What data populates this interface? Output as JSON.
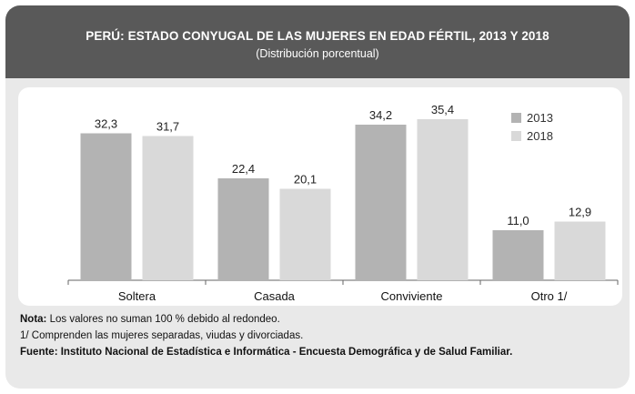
{
  "header": {
    "title": "PERÚ: ESTADO CONYUGAL DE LAS MUJERES EN EDAD FÉRTIL, 2013 Y 2018",
    "subtitle": "(Distribución porcentual)"
  },
  "notes": {
    "nota_label": "Nota:",
    "nota_text": " Los valores no suman 100 % debido al redondeo.",
    "footnote": "1/ Comprenden las mujeres separadas, viudas y divorciadas.",
    "fuente": "Fuente: Instituto Nacional de Estadística e Informática - Encuesta Demográfica y de Salud Familiar."
  },
  "colors": {
    "s2013": "#b3b3b3",
    "s2018": "#d9d9d9",
    "axis": "#666666"
  },
  "chart_data": {
    "type": "bar",
    "title": "PERÚ: ESTADO CONYUGAL DE LAS MUJERES EN EDAD FÉRTIL, 2013 Y 2018",
    "subtitle": "(Distribución porcentual)",
    "categories": [
      "Soltera",
      "Casada",
      "Conviviente",
      "Otro 1/"
    ],
    "series": [
      {
        "name": "2013",
        "values": [
          32.3,
          22.4,
          34.2,
          11.0
        ],
        "labels": [
          "32,3",
          "22,4",
          "34,2",
          "11,0"
        ]
      },
      {
        "name": "2018",
        "values": [
          31.7,
          20.1,
          35.4,
          12.9
        ],
        "labels": [
          "31,7",
          "20,1",
          "35,4",
          "12,9"
        ]
      }
    ],
    "ylim": [
      0,
      40
    ],
    "grid": false,
    "legend": "top-right"
  }
}
